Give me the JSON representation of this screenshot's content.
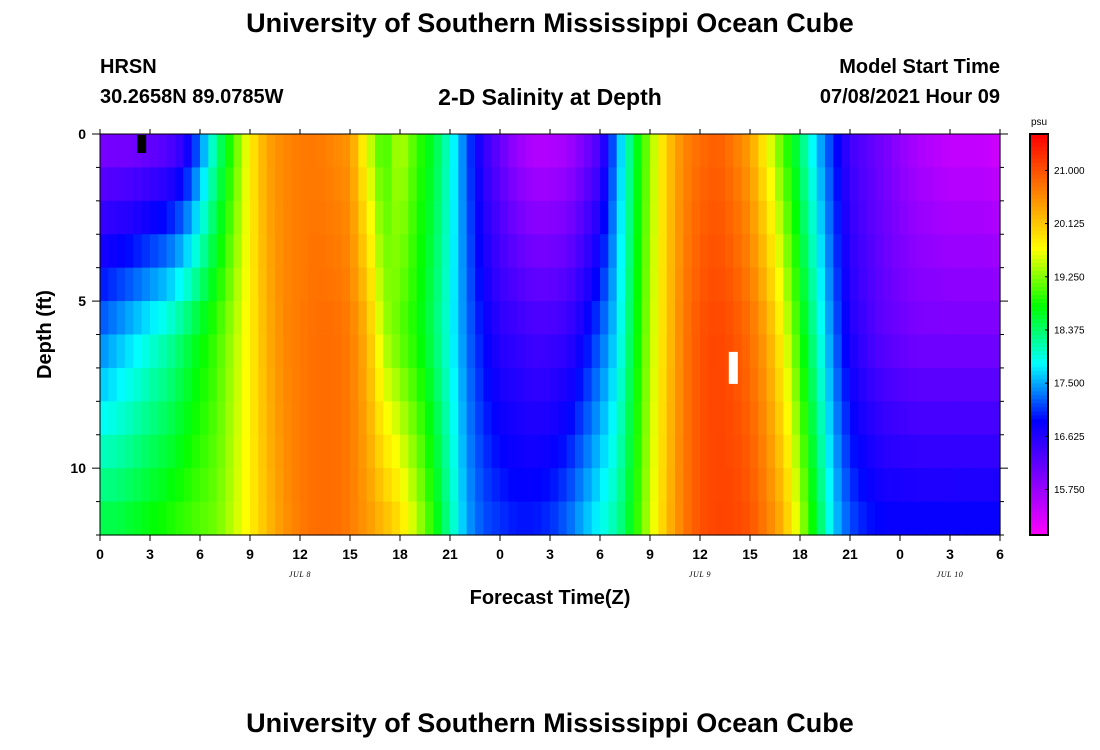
{
  "header": {
    "title": "University of Southern Mississippi Ocean Cube",
    "station": "HRSN",
    "coords": "30.2658N  89.0785W",
    "subtitle": "2-D Salinity at Depth",
    "model_start_label": "Model Start Time",
    "model_start_value": "07/08/2021 Hour 09"
  },
  "footer": {
    "title": "University of Southern Mississippi Ocean Cube"
  },
  "chart_data": {
    "type": "heatmap",
    "title": "2-D Salinity at Depth",
    "xlabel": "Forecast Time(Z)",
    "ylabel": "Depth (ft)",
    "x_tick_labels": [
      "0",
      "3",
      "6",
      "9",
      "12",
      "15",
      "18",
      "21",
      "0",
      "3",
      "6",
      "9",
      "12",
      "15",
      "18",
      "21",
      "0",
      "3",
      "6"
    ],
    "x_range_hours": [
      0,
      54
    ],
    "date_labels": [
      {
        "text": "JUL 8",
        "at_hour": 12
      },
      {
        "text": "JUL 9",
        "at_hour": 36
      },
      {
        "text": "JUL 10",
        "at_hour": 51
      }
    ],
    "y_tick_labels": [
      "0",
      "5",
      "10"
    ],
    "y_range_ft": [
      0,
      12
    ],
    "units": "psu",
    "colorbar": {
      "min": 15.0,
      "max": 21.6,
      "tick_labels": [
        "21.000",
        "20.125",
        "19.250",
        "18.375",
        "17.500",
        "16.625",
        "15.750"
      ],
      "colors": [
        "#ff00ff",
        "#8000ff",
        "#0000ff",
        "#00ffff",
        "#00ff00",
        "#ffff00",
        "#ff8000",
        "#ff0000"
      ]
    },
    "salinity_field": {
      "x_hours": [
        0,
        1,
        2,
        3,
        4,
        5,
        6,
        7,
        8,
        9,
        10,
        11,
        12,
        13,
        14,
        15,
        16,
        17,
        18,
        19,
        20,
        21,
        22,
        23,
        24,
        25,
        26,
        27,
        28,
        29,
        30,
        31,
        32,
        33,
        34,
        35,
        36,
        37,
        38,
        39,
        40,
        41,
        42,
        43,
        44,
        45,
        46,
        47,
        48,
        49,
        50,
        51,
        52,
        53,
        54
      ],
      "depth_ft": [
        0,
        6,
        12
      ],
      "values_surface": [
        15.9,
        15.9,
        15.9,
        16.0,
        16.1,
        16.4,
        17.2,
        18.2,
        19.0,
        19.8,
        20.4,
        20.6,
        20.7,
        20.7,
        20.6,
        20.5,
        19.6,
        18.9,
        19.5,
        19.0,
        18.6,
        18.0,
        17.2,
        16.5,
        16.1,
        15.7,
        15.5,
        15.5,
        15.6,
        15.9,
        16.3,
        17.4,
        18.5,
        19.3,
        20.1,
        20.6,
        20.8,
        20.9,
        20.7,
        20.4,
        19.7,
        19.0,
        18.4,
        17.6,
        17.0,
        16.4,
        16.2,
        16.0,
        15.8,
        15.6,
        15.5,
        15.4,
        15.4,
        15.4,
        15.3
      ],
      "values_mid": [
        17.3,
        17.5,
        17.7,
        17.9,
        18.1,
        18.4,
        18.7,
        19.0,
        19.4,
        19.8,
        20.3,
        20.6,
        20.7,
        20.8,
        20.8,
        20.7,
        20.3,
        19.4,
        19.1,
        18.8,
        18.4,
        17.9,
        17.3,
        16.9,
        16.6,
        16.5,
        16.4,
        16.4,
        16.5,
        16.8,
        17.2,
        17.7,
        18.6,
        19.4,
        20.1,
        20.7,
        21.0,
        21.1,
        21.0,
        20.8,
        20.4,
        19.7,
        18.9,
        18.1,
        17.3,
        16.7,
        16.4,
        16.2,
        16.1,
        16.0,
        16.0,
        16.0,
        16.0,
        16.0,
        16.0
      ],
      "values_bottom": [
        18.6,
        18.6,
        18.7,
        18.8,
        18.9,
        19.0,
        19.1,
        19.2,
        19.5,
        19.8,
        20.2,
        20.5,
        20.7,
        20.8,
        20.8,
        20.7,
        20.5,
        20.3,
        20.0,
        19.5,
        18.9,
        18.2,
        17.5,
        17.2,
        17.1,
        17.0,
        17.0,
        17.1,
        17.3,
        17.6,
        17.9,
        18.2,
        18.8,
        19.5,
        20.2,
        20.7,
        21.0,
        21.1,
        21.1,
        21.0,
        20.7,
        20.3,
        19.5,
        18.6,
        17.7,
        17.2,
        17.0,
        16.9,
        16.9,
        16.9,
        16.9,
        16.9,
        16.9,
        16.9,
        16.9
      ]
    },
    "markers": [
      {
        "name": "black-marker",
        "color": "#000000",
        "hour": 2.5,
        "depth_ft": 0.3
      },
      {
        "name": "white-marker",
        "color": "#ffffff",
        "hour": 38,
        "depth_ft": 7.0
      }
    ],
    "grid": false
  }
}
